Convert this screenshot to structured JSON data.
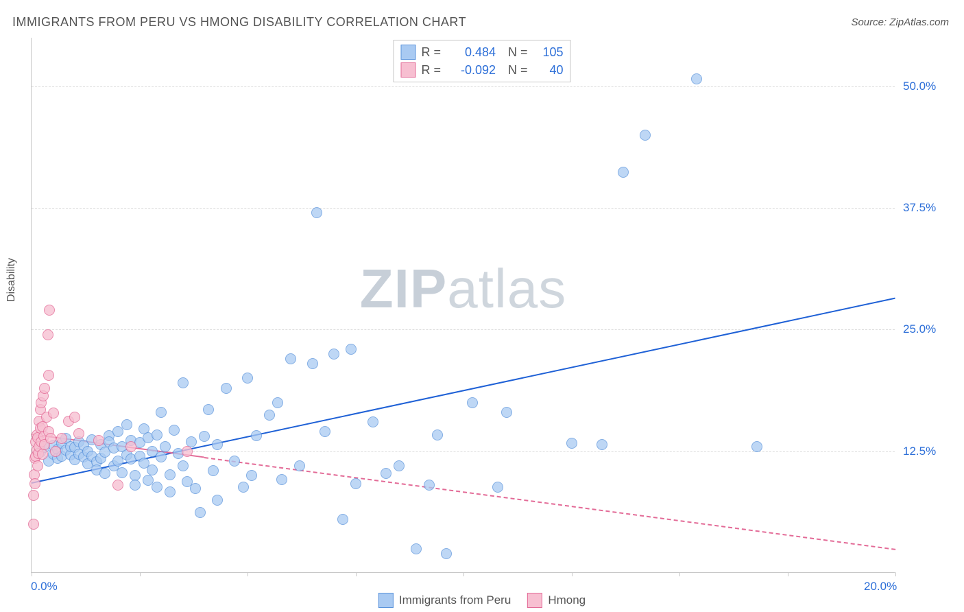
{
  "title": "IMMIGRANTS FROM PERU VS HMONG DISABILITY CORRELATION CHART",
  "source": "Source: ZipAtlas.com",
  "yaxis_label": "Disability",
  "watermark_bold": "ZIP",
  "watermark_rest": "atlas",
  "plot": {
    "x_domain": [
      0,
      20
    ],
    "y_domain": [
      0,
      55
    ],
    "x_ticks": [
      0,
      2.5,
      5,
      7.5,
      10,
      12.5,
      15,
      17.5,
      20
    ],
    "x_tick_labels": {
      "0": "0.0%",
      "20": "20.0%"
    },
    "y_gridlines": [
      12.5,
      25,
      37.5,
      50
    ],
    "grid_color": "#dddddd",
    "axis_color": "#c7c7c7",
    "tick_label_color": "#2d6fd8",
    "tick_label_fontsize": 17
  },
  "series": [
    {
      "name": "Immigrants from Peru",
      "marker_fill": "#a9caf2",
      "marker_stroke": "#5a93db",
      "marker_opacity": 0.75,
      "marker_size": 16,
      "trend_color": "#1f61d6",
      "trend_width": 2.5,
      "trend_solid_from_x": 0,
      "trend_solid_to_x": 20,
      "trend": {
        "x1": 0,
        "y1": 9.3,
        "x2": 20,
        "y2": 28.3
      },
      "R": "0.484",
      "N": "105",
      "points": [
        [
          0.2,
          12.4
        ],
        [
          0.3,
          12.9
        ],
        [
          0.4,
          11.5
        ],
        [
          0.5,
          13.1
        ],
        [
          0.5,
          12.2
        ],
        [
          0.6,
          12.7
        ],
        [
          0.6,
          11.8
        ],
        [
          0.7,
          13.3
        ],
        [
          0.7,
          12.0
        ],
        [
          0.8,
          12.6
        ],
        [
          0.8,
          13.8
        ],
        [
          0.9,
          12.1
        ],
        [
          0.9,
          13.0
        ],
        [
          1.0,
          11.6
        ],
        [
          1.0,
          12.9
        ],
        [
          1.1,
          13.5
        ],
        [
          1.1,
          12.2
        ],
        [
          1.2,
          11.9
        ],
        [
          1.2,
          13.1
        ],
        [
          1.3,
          12.5
        ],
        [
          1.3,
          11.2
        ],
        [
          1.4,
          13.7
        ],
        [
          1.4,
          12.0
        ],
        [
          1.5,
          11.4
        ],
        [
          1.5,
          10.6
        ],
        [
          1.6,
          13.2
        ],
        [
          1.6,
          11.8
        ],
        [
          1.7,
          12.4
        ],
        [
          1.7,
          10.2
        ],
        [
          1.8,
          14.1
        ],
        [
          1.8,
          13.5
        ],
        [
          1.9,
          11.0
        ],
        [
          1.9,
          12.8
        ],
        [
          2.0,
          14.5
        ],
        [
          2.0,
          11.5
        ],
        [
          2.1,
          13.0
        ],
        [
          2.1,
          10.3
        ],
        [
          2.2,
          12.1
        ],
        [
          2.2,
          15.2
        ],
        [
          2.3,
          13.6
        ],
        [
          2.3,
          11.7
        ],
        [
          2.4,
          10.0
        ],
        [
          2.4,
          9.0
        ],
        [
          2.5,
          13.4
        ],
        [
          2.5,
          12.0
        ],
        [
          2.6,
          14.8
        ],
        [
          2.6,
          11.3
        ],
        [
          2.7,
          9.5
        ],
        [
          2.7,
          13.9
        ],
        [
          2.8,
          12.5
        ],
        [
          2.8,
          10.6
        ],
        [
          2.9,
          14.2
        ],
        [
          2.9,
          8.8
        ],
        [
          3.0,
          11.9
        ],
        [
          3.0,
          16.5
        ],
        [
          3.1,
          13.0
        ],
        [
          3.2,
          10.1
        ],
        [
          3.2,
          8.3
        ],
        [
          3.3,
          14.7
        ],
        [
          3.4,
          12.3
        ],
        [
          3.5,
          11.0
        ],
        [
          3.5,
          19.5
        ],
        [
          3.6,
          9.4
        ],
        [
          3.7,
          13.5
        ],
        [
          3.8,
          8.7
        ],
        [
          3.9,
          6.2
        ],
        [
          4.0,
          14.0
        ],
        [
          4.1,
          16.8
        ],
        [
          4.2,
          10.5
        ],
        [
          4.3,
          7.5
        ],
        [
          4.5,
          19.0
        ],
        [
          4.7,
          11.5
        ],
        [
          4.9,
          8.8
        ],
        [
          5.0,
          20.0
        ],
        [
          5.2,
          14.1
        ],
        [
          5.5,
          16.2
        ],
        [
          5.7,
          17.5
        ],
        [
          5.8,
          9.6
        ],
        [
          6.0,
          22.0
        ],
        [
          6.2,
          11.0
        ],
        [
          6.5,
          21.5
        ],
        [
          6.6,
          37.0
        ],
        [
          6.8,
          14.5
        ],
        [
          7.0,
          22.5
        ],
        [
          7.2,
          5.5
        ],
        [
          7.4,
          23.0
        ],
        [
          7.5,
          9.2
        ],
        [
          7.9,
          15.5
        ],
        [
          8.2,
          10.2
        ],
        [
          8.5,
          11.0
        ],
        [
          8.9,
          2.5
        ],
        [
          9.2,
          9.0
        ],
        [
          9.4,
          14.2
        ],
        [
          9.6,
          2.0
        ],
        [
          10.2,
          17.5
        ],
        [
          10.8,
          8.8
        ],
        [
          11.0,
          16.5
        ],
        [
          12.5,
          13.3
        ],
        [
          13.2,
          13.2
        ],
        [
          13.7,
          41.2
        ],
        [
          14.2,
          45.0
        ],
        [
          15.4,
          50.8
        ],
        [
          16.8,
          13.0
        ],
        [
          4.3,
          13.2
        ],
        [
          5.1,
          10.0
        ]
      ]
    },
    {
      "name": "Hmong",
      "marker_fill": "#f7bfd1",
      "marker_stroke": "#e36b97",
      "marker_opacity": 0.78,
      "marker_size": 16,
      "trend_color": "#e36b97",
      "trend_width": 2,
      "trend_solid_from_x": 0,
      "trend_solid_to_x": 4.0,
      "trend": {
        "x1": 0,
        "y1": 14.3,
        "x2": 20,
        "y2": 2.5
      },
      "R": "-0.092",
      "N": "40",
      "points": [
        [
          0.05,
          5.0
        ],
        [
          0.05,
          8.0
        ],
        [
          0.06,
          10.1
        ],
        [
          0.08,
          9.2
        ],
        [
          0.08,
          11.8
        ],
        [
          0.1,
          12.0
        ],
        [
          0.1,
          13.5
        ],
        [
          0.12,
          12.6
        ],
        [
          0.12,
          14.2
        ],
        [
          0.14,
          11.0
        ],
        [
          0.14,
          13.9
        ],
        [
          0.16,
          12.3
        ],
        [
          0.18,
          15.6
        ],
        [
          0.18,
          13.0
        ],
        [
          0.2,
          14.9
        ],
        [
          0.2,
          16.8
        ],
        [
          0.22,
          13.5
        ],
        [
          0.23,
          17.5
        ],
        [
          0.25,
          15.0
        ],
        [
          0.25,
          12.2
        ],
        [
          0.27,
          18.2
        ],
        [
          0.28,
          14.0
        ],
        [
          0.3,
          19.0
        ],
        [
          0.3,
          13.2
        ],
        [
          0.35,
          16.0
        ],
        [
          0.38,
          24.5
        ],
        [
          0.4,
          14.5
        ],
        [
          0.4,
          20.3
        ],
        [
          0.42,
          27.0
        ],
        [
          0.45,
          13.8
        ],
        [
          0.5,
          16.4
        ],
        [
          0.55,
          12.5
        ],
        [
          0.7,
          13.8
        ],
        [
          0.85,
          15.6
        ],
        [
          1.0,
          16.0
        ],
        [
          1.1,
          14.3
        ],
        [
          1.55,
          13.6
        ],
        [
          2.0,
          9.0
        ],
        [
          2.3,
          13.0
        ],
        [
          3.6,
          12.5
        ]
      ]
    }
  ],
  "stat_legend": {
    "R_label": "R =",
    "N_label": "N ="
  },
  "series_legend_labels": [
    "Immigrants from Peru",
    "Hmong"
  ]
}
